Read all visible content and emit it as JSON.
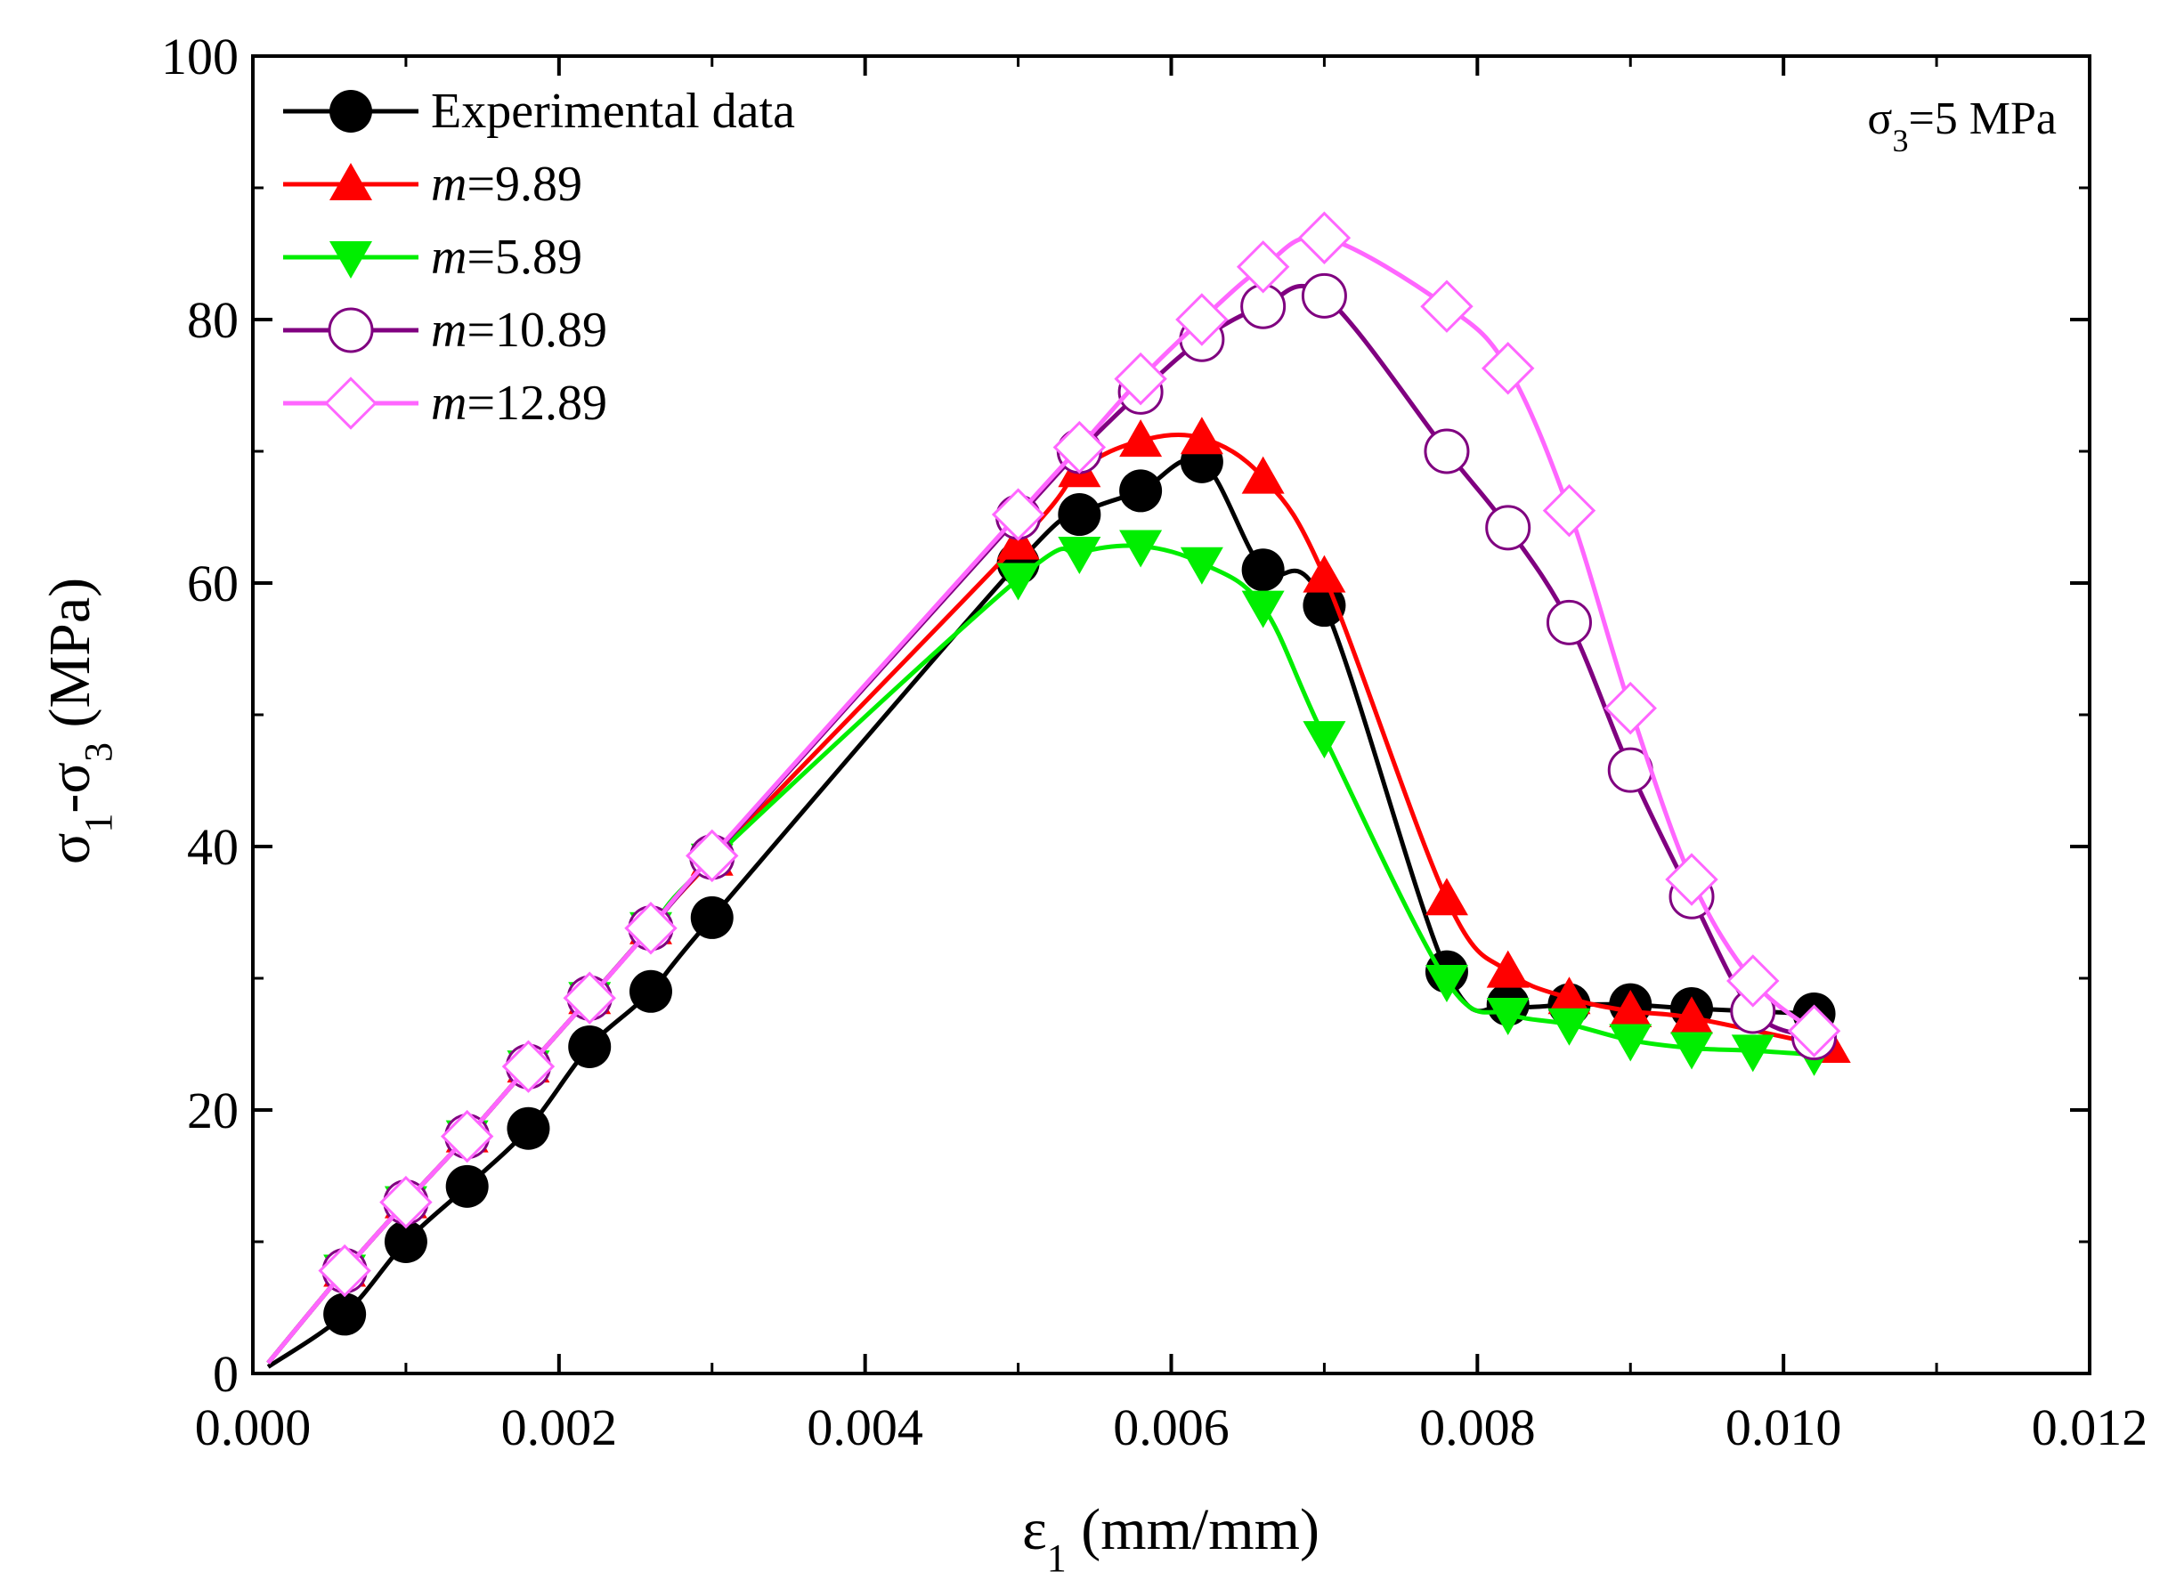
{
  "chart_data": {
    "type": "line",
    "title": "",
    "annotation": {
      "text": "σ3=5 MPa",
      "base": "σ",
      "sub": "3",
      "rest": "=5 MPa"
    },
    "xlabel": {
      "base": "ε",
      "sub": "1",
      "rest": " (mm/mm)"
    },
    "ylabel": {
      "base": "σ",
      "sub1": "1",
      "mid": "-σ",
      "sub2": "3",
      "rest": " (MPa)"
    },
    "xlim": [
      0,
      0.012
    ],
    "ylim": [
      0,
      100
    ],
    "xticks": [
      0,
      0.002,
      0.004,
      0.006,
      0.008,
      0.01,
      0.012
    ],
    "xtick_labels": [
      "0.000",
      "0.002",
      "0.004",
      "0.006",
      "0.008",
      "0.010",
      "0.012"
    ],
    "yticks": [
      0,
      20,
      40,
      60,
      80,
      100
    ],
    "ytick_labels": [
      "0",
      "20",
      "40",
      "60",
      "80",
      "100"
    ],
    "grid": false,
    "legend_position": "top-left",
    "series": [
      {
        "name": "Experimental data",
        "italic_prefix": "",
        "label": "Experimental data",
        "color": "#000000",
        "marker": "circle-filled",
        "x": [
          0.0001,
          0.0006,
          0.001,
          0.0014,
          0.0018,
          0.0022,
          0.0026,
          0.003,
          0.005,
          0.0054,
          0.0058,
          0.0062,
          0.0066,
          0.007,
          0.0078,
          0.0082,
          0.0086,
          0.009,
          0.0094,
          0.0102
        ],
        "y": [
          0.5,
          4.5,
          10,
          14.2,
          18.6,
          24.8,
          29,
          34.6,
          61.5,
          65.2,
          67,
          69.2,
          61,
          58.3,
          30.5,
          28,
          28,
          28,
          27.7,
          27.3
        ]
      },
      {
        "name": "m=9.89",
        "italic_prefix": "m",
        "label": "=9.89",
        "color": "#ff0000",
        "marker": "triangle-up-filled",
        "x": [
          0.0001,
          0.0006,
          0.001,
          0.0014,
          0.0018,
          0.0022,
          0.0026,
          0.003,
          0.005,
          0.0054,
          0.0058,
          0.0062,
          0.0066,
          0.007,
          0.0078,
          0.0082,
          0.0086,
          0.009,
          0.0094,
          0.0103
        ],
        "y": [
          0.8,
          7.8,
          13,
          18,
          23.3,
          28.5,
          33.8,
          39,
          63,
          68.5,
          70.8,
          71,
          68,
          60.5,
          36,
          30.5,
          28.5,
          27.5,
          27,
          24.8
        ]
      },
      {
        "name": "m=5.89",
        "italic_prefix": "m",
        "label": "=5.89",
        "color": "#00ee00",
        "marker": "triangle-down-filled",
        "x": [
          0.0001,
          0.0006,
          0.001,
          0.0014,
          0.0018,
          0.0022,
          0.0026,
          0.003,
          0.005,
          0.0054,
          0.0058,
          0.0062,
          0.0066,
          0.007,
          0.0078,
          0.0082,
          0.0086,
          0.009,
          0.0094,
          0.0098,
          0.0102
        ],
        "y": [
          0.8,
          7.8,
          13,
          18,
          23.3,
          28.5,
          33.8,
          39,
          60.3,
          62.3,
          62.8,
          61.5,
          58.2,
          48.3,
          29.8,
          27.3,
          26.5,
          25.3,
          24.7,
          24.5,
          24.2
        ]
      },
      {
        "name": "m=10.89",
        "italic_prefix": "m",
        "label": "=10.89",
        "color": "#800080",
        "marker": "circle-open",
        "x": [
          0.0001,
          0.0006,
          0.001,
          0.0014,
          0.0018,
          0.0022,
          0.0026,
          0.003,
          0.005,
          0.0054,
          0.0058,
          0.0062,
          0.0066,
          0.007,
          0.0078,
          0.0082,
          0.0086,
          0.009,
          0.0094,
          0.0098,
          0.0102
        ],
        "y": [
          0.8,
          7.8,
          13,
          18,
          23.3,
          28.5,
          33.8,
          39.2,
          65,
          70,
          74.5,
          78.5,
          81,
          81.8,
          70,
          64.2,
          57,
          45.8,
          36.2,
          27.5,
          25.5
        ]
      },
      {
        "name": "m=12.89",
        "italic_prefix": "m",
        "label": "=12.89",
        "color": "#ff66ff",
        "marker": "diamond-open",
        "x": [
          0.0001,
          0.0006,
          0.001,
          0.0014,
          0.0018,
          0.0022,
          0.0026,
          0.003,
          0.005,
          0.0054,
          0.0058,
          0.0062,
          0.0066,
          0.007,
          0.0078,
          0.0082,
          0.0086,
          0.009,
          0.0094,
          0.0098,
          0.0102
        ],
        "y": [
          0.8,
          7.8,
          13,
          18,
          23.3,
          28.5,
          33.8,
          39.3,
          65.2,
          70.3,
          75.5,
          80,
          84,
          86.2,
          81,
          76.3,
          65.5,
          50.5,
          37.5,
          29.8,
          26
        ]
      }
    ]
  }
}
